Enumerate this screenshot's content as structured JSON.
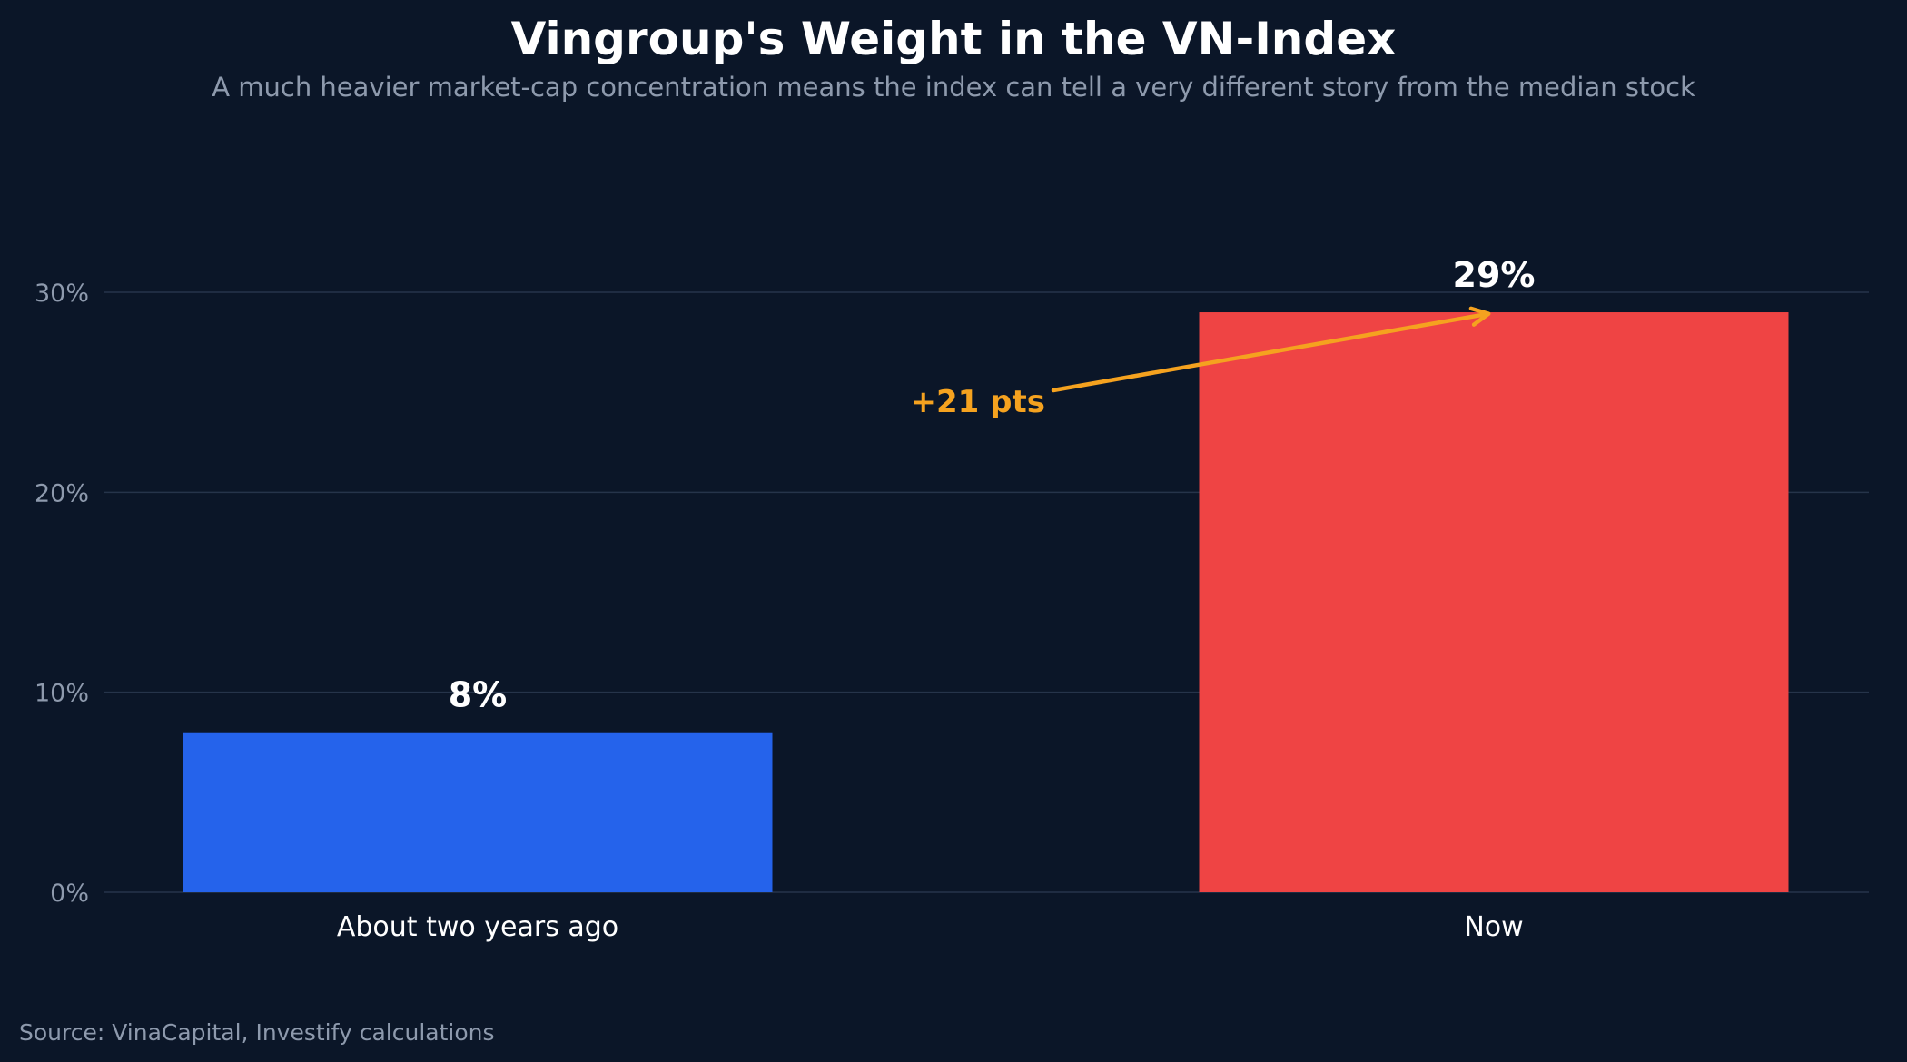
{
  "header": {
    "title": "Vingroup's Weight in the VN-Index",
    "subtitle": "A much heavier market-cap concentration means the index can tell a very different story from the median stock"
  },
  "footer": {
    "source": "Source: VinaCapital, Investify calculations"
  },
  "colors": {
    "background": "#0b1628",
    "grid": "#26344a",
    "tick_text": "#8e9aad",
    "annotation": "#f5a21f"
  },
  "chart_data": {
    "type": "bar",
    "categories": [
      "About two years ago",
      "Now"
    ],
    "values": [
      8,
      29
    ],
    "value_labels": [
      "8%",
      "29%"
    ],
    "bar_colors": [
      "#2563eb",
      "#ef4444"
    ],
    "ylim": [
      0,
      30
    ],
    "yticks": [
      0,
      10,
      20,
      30
    ],
    "ytick_labels": [
      "0%",
      "10%",
      "20%",
      "30%"
    ],
    "grid": true,
    "annotation": {
      "text": "+21 pts",
      "arrow_points_to": "Now",
      "arrow_target_value": 29
    }
  }
}
